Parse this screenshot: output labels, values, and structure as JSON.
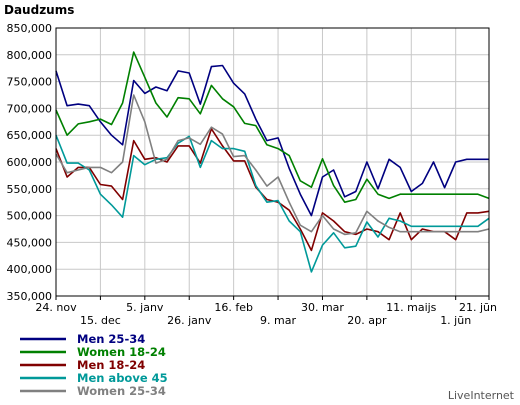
{
  "chart_data": {
    "type": "line",
    "title": "Daudzums",
    "credit": "LiveInternet",
    "ylim": [
      350000,
      850000
    ],
    "yticks": [
      "850,000",
      "800,000",
      "750,000",
      "700,000",
      "650,000",
      "600,000",
      "550,000",
      "500,000",
      "450,000",
      "400,000",
      "350,000"
    ],
    "ytick_values": [
      850000,
      800000,
      750000,
      700000,
      650000,
      600000,
      550000,
      500000,
      450000,
      400000,
      350000
    ],
    "x_count": 40,
    "xticks": [
      {
        "index": 0,
        "label": "24. nov"
      },
      {
        "index": 4,
        "label": "15. dec"
      },
      {
        "index": 8,
        "label": "5. janv"
      },
      {
        "index": 12,
        "label": "26. janv"
      },
      {
        "index": 16,
        "label": "16. feb"
      },
      {
        "index": 20,
        "label": "9. mar"
      },
      {
        "index": 24,
        "label": "30. mar"
      },
      {
        "index": 28,
        "label": "20. apr"
      },
      {
        "index": 32,
        "label": "11. maijs"
      },
      {
        "index": 36,
        "label": "1. jūn"
      },
      {
        "index": 39,
        "label": "21. jūn"
      }
    ],
    "grid": true,
    "legend_position": "bottom-left",
    "series": [
      {
        "name": "Men 25-34",
        "color": "#000080",
        "values": [
          770000,
          705000,
          708000,
          705000,
          675000,
          650000,
          632000,
          752000,
          728000,
          740000,
          733000,
          770000,
          766000,
          708000,
          778000,
          780000,
          747000,
          727000,
          680000,
          640000,
          645000,
          588000,
          540000,
          500000,
          572000,
          585000,
          535000,
          545000,
          600000,
          550000,
          605000,
          590000,
          545000,
          560000,
          600000,
          552000,
          600000,
          605000,
          605000,
          605000
        ]
      },
      {
        "name": "Women 18-24",
        "color": "#008000",
        "values": [
          697000,
          650000,
          671000,
          675000,
          680000,
          670000,
          710000,
          805000,
          758000,
          710000,
          684000,
          720000,
          718000,
          690000,
          743000,
          718000,
          703000,
          672000,
          668000,
          632000,
          625000,
          612000,
          565000,
          553000,
          606000,
          556000,
          525000,
          530000,
          568000,
          540000,
          532000,
          540000,
          540000,
          540000,
          540000,
          540000,
          540000,
          540000,
          540000,
          532000
        ]
      },
      {
        "name": "Men 18-24",
        "color": "#800000",
        "values": [
          625000,
          572000,
          590000,
          590000,
          558000,
          555000,
          530000,
          640000,
          605000,
          608000,
          600000,
          630000,
          630000,
          598000,
          662000,
          630000,
          602000,
          602000,
          553000,
          530000,
          525000,
          510000,
          475000,
          435000,
          505000,
          490000,
          470000,
          465000,
          475000,
          470000,
          455000,
          505000,
          455000,
          475000,
          470000,
          470000,
          455000,
          505000,
          505000,
          508000
        ]
      },
      {
        "name": "Men above 45",
        "color": "#009999",
        "values": [
          650000,
          598000,
          598000,
          585000,
          540000,
          520000,
          497000,
          612000,
          595000,
          605000,
          608000,
          635000,
          648000,
          590000,
          640000,
          625000,
          625000,
          620000,
          556000,
          525000,
          528000,
          490000,
          470000,
          395000,
          445000,
          468000,
          440000,
          443000,
          488000,
          460000,
          495000,
          490000,
          480000,
          480000,
          480000,
          480000,
          480000,
          480000,
          480000,
          495000
        ]
      },
      {
        "name": "Women 25-34",
        "color": "#808080",
        "values": [
          615000,
          580000,
          585000,
          590000,
          590000,
          580000,
          600000,
          725000,
          675000,
          598000,
          605000,
          640000,
          645000,
          633000,
          665000,
          652000,
          610000,
          612000,
          585000,
          555000,
          572000,
          525000,
          482000,
          470000,
          500000,
          475000,
          465000,
          468000,
          508000,
          490000,
          478000,
          470000,
          470000,
          470000,
          470000,
          470000,
          470000,
          470000,
          470000,
          475000
        ]
      }
    ]
  }
}
